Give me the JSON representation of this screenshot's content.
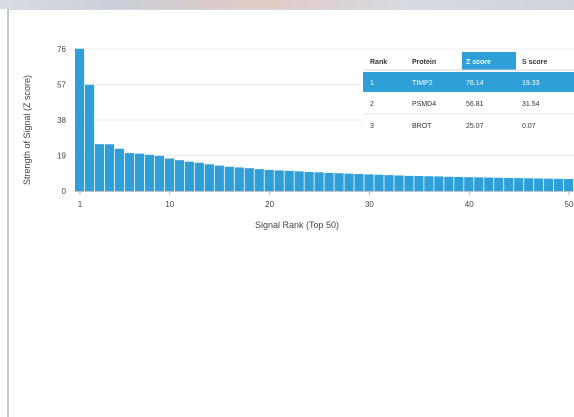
{
  "chart_data": {
    "type": "bar",
    "xlabel": "Signal Rank (Top 50)",
    "ylabel": "Strength of Signal (Z score)",
    "ylim": [
      0,
      76
    ],
    "yticks": [
      0,
      19,
      38,
      57,
      76
    ],
    "xticks": [
      1,
      10,
      20,
      30,
      40,
      50
    ],
    "bar_color": "#2e9fd8",
    "values": [
      76.14,
      56.81,
      25.07,
      25.0,
      22.6,
      20.3,
      20.0,
      19.4,
      18.8,
      17.4,
      16.5,
      15.7,
      15.1,
      14.3,
      13.6,
      13.0,
      12.6,
      12.2,
      11.7,
      11.3,
      11.0,
      10.8,
      10.5,
      10.2,
      10.0,
      9.7,
      9.5,
      9.3,
      9.1,
      8.9,
      8.7,
      8.5,
      8.3,
      8.1,
      8.0,
      7.9,
      7.8,
      7.6,
      7.5,
      7.4,
      7.3,
      7.2,
      7.1,
      7.0,
      6.9,
      6.8,
      6.7,
      6.6,
      6.5,
      6.4
    ]
  },
  "table": {
    "headers": [
      "Rank",
      "Protein",
      "Z score",
      "S score"
    ],
    "header_highlight_color": "#2e9fd8",
    "rows": [
      {
        "rank": "1",
        "protein": "TIMP2",
        "z": "76.14",
        "s": "19.33",
        "highlight": true
      },
      {
        "rank": "2",
        "protein": "PSMD4",
        "z": "56.81",
        "s": "31.54",
        "highlight": false
      },
      {
        "rank": "3",
        "protein": "BROT",
        "z": "25.07",
        "s": "0.07",
        "highlight": false
      }
    ]
  }
}
